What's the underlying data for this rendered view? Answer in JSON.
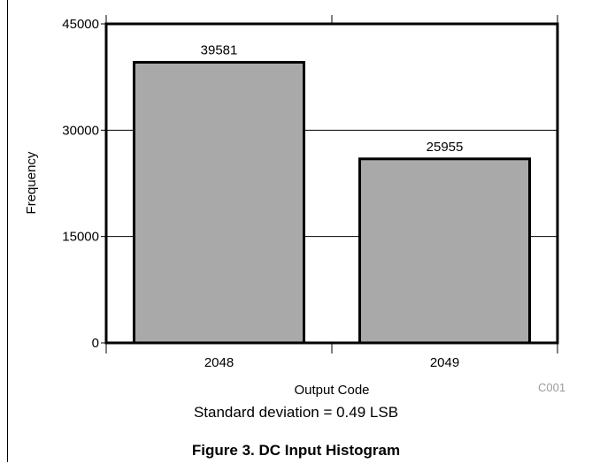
{
  "chart_data": {
    "type": "bar",
    "categories": [
      "2048",
      "2049"
    ],
    "values": [
      39581,
      25955
    ],
    "data_labels": [
      "39581",
      "25955"
    ],
    "xlabel": "Output Code",
    "ylabel": "Frequency",
    "ylim": [
      0,
      45000
    ],
    "yticks": [
      0,
      15000,
      30000,
      45000
    ],
    "ytick_labels": [
      "0",
      "15000",
      "30000",
      "45000"
    ],
    "grid": true,
    "bar_color": "#a9a9a9"
  },
  "annotation": "Standard deviation = 0.49 LSB",
  "code": "C001",
  "figure_title": "Figure 3. DC Input Histogram"
}
